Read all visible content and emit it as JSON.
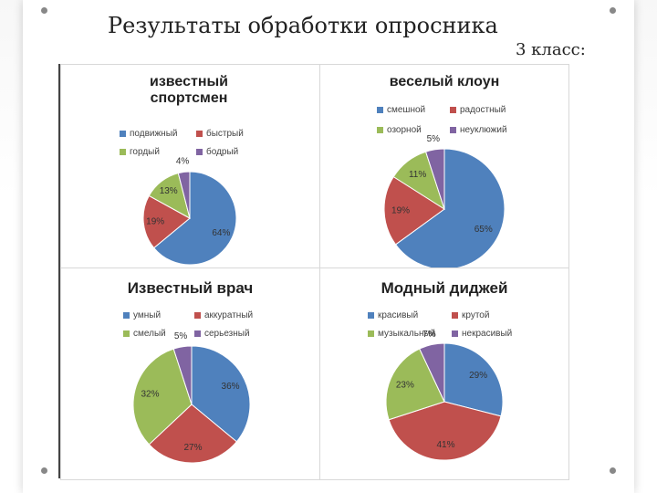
{
  "title": "Результаты обработки опросника",
  "subtitle": "3 класс:",
  "chart_data": [
    {
      "type": "pie",
      "title": "известный спортсмен",
      "categories": [
        "подвижный",
        "быстрый",
        "гордый",
        "бодрый"
      ],
      "values": [
        64,
        19,
        13,
        4
      ],
      "labels": [
        "64%",
        "19%",
        "13%",
        "4%"
      ],
      "colors": [
        "#4f81bd",
        "#c0504d",
        "#9bbb59",
        "#8064a2"
      ]
    },
    {
      "type": "pie",
      "title": "веселый клоун",
      "categories": [
        "смешной",
        "радостный",
        "озорной",
        "неуклюжий"
      ],
      "values": [
        65,
        19,
        11,
        5
      ],
      "labels": [
        "65%",
        "19%",
        "11%",
        "5%"
      ],
      "colors": [
        "#4f81bd",
        "#c0504d",
        "#9bbb59",
        "#8064a2"
      ]
    },
    {
      "type": "pie",
      "title": "Известный врач",
      "categories": [
        "умный",
        "аккуратный",
        "смелый",
        "серьезный"
      ],
      "values": [
        36,
        27,
        32,
        5
      ],
      "labels": [
        "36%",
        "27%",
        "32%",
        "5%"
      ],
      "colors": [
        "#4f81bd",
        "#c0504d",
        "#9bbb59",
        "#8064a2"
      ]
    },
    {
      "type": "pie",
      "title": "Модный диджей",
      "categories": [
        "красивый",
        "крутой",
        "музыкальный",
        "некрасивый"
      ],
      "values": [
        29,
        41,
        23,
        7
      ],
      "labels": [
        "29%",
        "41%",
        "23%",
        "7%"
      ],
      "colors": [
        "#4f81bd",
        "#c0504d",
        "#9bbb59",
        "#8064a2"
      ]
    }
  ]
}
